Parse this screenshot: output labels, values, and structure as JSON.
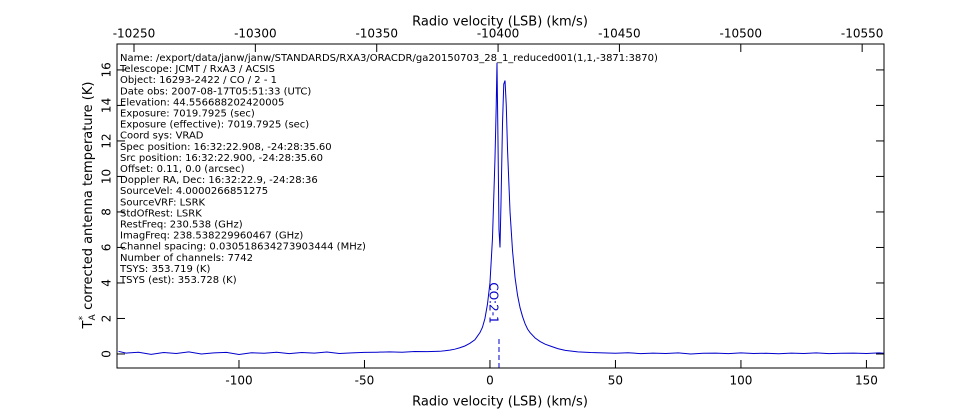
{
  "chart_data": {
    "type": "line",
    "xlabel": "Radio velocity (LSB) (km/s)",
    "x2label": "Radio velocity (LSB) (km/s)",
    "ylabel_symbol": "T",
    "ylabel_symbol_sub": "A",
    "ylabel_symbol_sup": "*",
    "ylabel": "corrected antenna temperature (K)",
    "xlim": [
      -148.6,
      157
    ],
    "xticks": [
      -100,
      -50,
      0,
      50,
      100,
      150
    ],
    "x2lim": [
      -10243,
      -10559
    ],
    "x2ticks": [
      -10250,
      -10300,
      -10350,
      -10400,
      -10450,
      -10500,
      -10550
    ],
    "ylim": [
      -0.79,
      17.46
    ],
    "yticks": [
      0,
      2,
      4,
      6,
      8,
      10,
      12,
      14,
      16
    ],
    "color": "#0000cc",
    "x": [
      -148,
      -145,
      -140,
      -135,
      -130,
      -125,
      -120,
      -115,
      -110,
      -105,
      -100,
      -95,
      -90,
      -85,
      -80,
      -75,
      -70,
      -65,
      -60,
      -55,
      -50,
      -45,
      -40,
      -35,
      -30,
      -25,
      -20,
      -18,
      -16,
      -14,
      -12,
      -10,
      -8,
      -6,
      -5,
      -4,
      -3,
      -2,
      -1,
      0,
      1,
      2,
      2.5,
      2.8,
      3.2,
      3.6,
      4,
      4.4,
      5,
      5.5,
      6,
      6.5,
      7,
      8,
      9,
      10,
      11,
      12,
      13,
      14,
      15,
      16,
      18,
      20,
      22,
      24,
      27,
      30,
      35,
      40,
      45,
      50,
      55,
      60,
      65,
      70,
      75,
      80,
      85,
      90,
      95,
      100,
      105,
      110,
      115,
      120,
      125,
      130,
      135,
      140,
      145,
      150,
      155,
      157
    ],
    "values": [
      0.15,
      0.05,
      0.1,
      -0.02,
      0.08,
      0.03,
      0.12,
      0.0,
      0.06,
      0.09,
      -0.03,
      0.07,
      0.04,
      0.1,
      0.02,
      0.08,
      0.05,
      0.11,
      0.03,
      0.06,
      0.09,
      0.1,
      0.12,
      0.1,
      0.14,
      0.13,
      0.15,
      0.18,
      0.22,
      0.27,
      0.35,
      0.45,
      0.6,
      0.8,
      1.0,
      1.2,
      1.5,
      2.0,
      2.8,
      4.0,
      6.5,
      11,
      14,
      16.4,
      12,
      7,
      6,
      8.5,
      13,
      15.2,
      15.4,
      14,
      11.5,
      8,
      5.8,
      4.3,
      3.3,
      2.6,
      2.1,
      1.7,
      1.4,
      1.2,
      0.9,
      0.7,
      0.55,
      0.45,
      0.3,
      0.2,
      0.12,
      0.08,
      0.06,
      0.04,
      0.07,
      0.02,
      0.05,
      0.03,
      0.06,
      0.0,
      0.04,
      0.05,
      0.02,
      0.06,
      0.03,
      0.04,
      0.01,
      0.05,
      0.03,
      0.06,
      0.02,
      0.04,
      0.05,
      0.03,
      0.06,
      0.04
    ],
    "line_marker": {
      "x": 3.6,
      "label": "CO:2-1"
    },
    "info_lines": [
      "Name: /export/data/janw/janw/STANDARDS/RXA3/ORACDR/ga20150703_28_1_reduced001(1,1,-3871:3870)",
      "Telescope: JCMT / RxA3 / ACSIS",
      "Object: 16293-2422 / CO / 2 - 1",
      "Date obs: 2007-08-17T05:51:33 (UTC)",
      "Elevation: 44.556688202420005",
      "Exposure: 7019.7925 (sec)",
      "Exposure (effective): 7019.7925 (sec)",
      "Coord sys: VRAD",
      "Spec position: 16:32:22.908, -24:28:35.60",
      "Src position: 16:32:22.900, -24:28:35.60",
      "Offset: 0.11, 0.0 (arcsec)",
      "Doppler RA, Dec: 16:32:22.9, -24:28:36",
      "SourceVel: 4.0000266851275",
      "SourceVRF: LSRK",
      "StdOfRest: LSRK",
      "RestFreq: 230.538 (GHz)",
      "ImagFreq: 238.538229960467 (GHz)",
      "Channel spacing: 0.030518634273903444 (MHz)",
      "Number of channels: 7742",
      "TSYS: 353.719 (K)",
      "TSYS (est): 353.728 (K)"
    ]
  }
}
